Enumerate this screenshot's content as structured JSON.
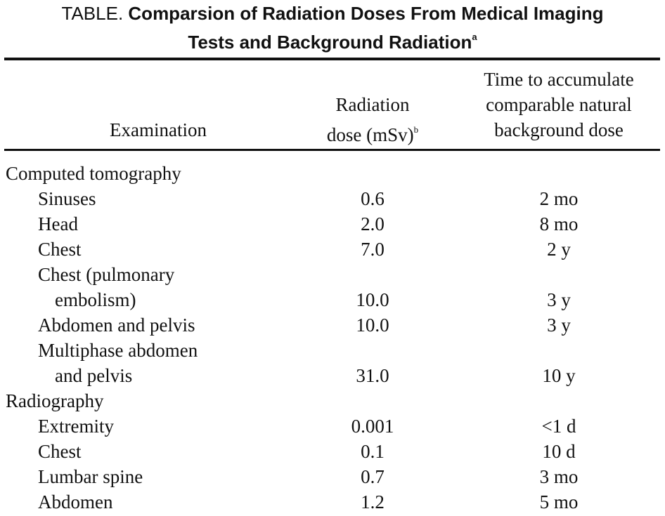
{
  "title": {
    "lead": "TABLE.",
    "line1": "Comparsion of Radiation Doses From Medical Imaging",
    "line2": "Tests and Background Radiation",
    "line2_sup": "a"
  },
  "header": {
    "examination": "Examination",
    "dose_line1": "Radiation",
    "dose_line2": "dose (mSv)",
    "dose_sup": "b",
    "time_line1": "Time to accumulate",
    "time_line2": "comparable natural",
    "time_line3": "background dose"
  },
  "rows": [
    {
      "kind": "section",
      "exam": "Computed tomography",
      "dose": "",
      "time": ""
    },
    {
      "kind": "item",
      "exam": "Sinuses",
      "dose": "0.6",
      "time": "2 mo"
    },
    {
      "kind": "item",
      "exam": "Head",
      "dose": "2.0",
      "time": "8 mo"
    },
    {
      "kind": "item",
      "exam": "Chest",
      "dose": "7.0",
      "time": "2 y"
    },
    {
      "kind": "item",
      "exam": "Chest (pulmonary",
      "dose": "",
      "time": ""
    },
    {
      "kind": "cont",
      "exam": "embolism)",
      "dose": "10.0",
      "time": "3 y"
    },
    {
      "kind": "item",
      "exam": "Abdomen and pelvis",
      "dose": "10.0",
      "time": "3 y"
    },
    {
      "kind": "item",
      "exam": "Multiphase abdomen",
      "dose": "",
      "time": ""
    },
    {
      "kind": "cont",
      "exam": "and pelvis",
      "dose": "31.0",
      "time": "10 y"
    },
    {
      "kind": "section",
      "exam": "Radiography",
      "dose": "",
      "time": ""
    },
    {
      "kind": "item",
      "exam": "Extremity",
      "dose": "0.001",
      "time": "<1 d"
    },
    {
      "kind": "item",
      "exam": "Chest",
      "dose": "0.1",
      "time": "10 d"
    },
    {
      "kind": "item",
      "exam": "Lumbar spine",
      "dose": "0.7",
      "time": "3 mo"
    },
    {
      "kind": "item",
      "exam": "Abdomen",
      "dose": "1.2",
      "time": "5 mo"
    }
  ]
}
